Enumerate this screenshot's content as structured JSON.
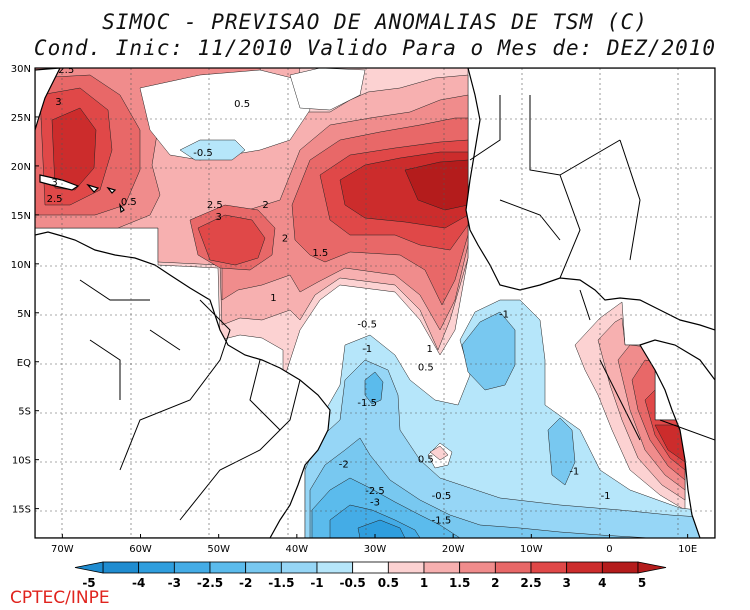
{
  "header": {
    "title_line1": "SIMOC - PREVISAO DE ANOMALIAS DE TSM (C)",
    "title_line2": "Cond. Inic: 11/2010   Valido Para o Mes de: DEZ/2010"
  },
  "map": {
    "lat_labels": [
      "30N",
      "25N",
      "20N",
      "15N",
      "10N",
      "5N",
      "EQ",
      "5S",
      "10S",
      "15S"
    ],
    "lon_labels": [
      "70W",
      "60W",
      "50W",
      "40W",
      "30W",
      "20W",
      "10W",
      "0",
      "10E"
    ],
    "contour_labels": [
      {
        "text": "2.5",
        "lon": -69.5,
        "lat": 29.5
      },
      {
        "text": "3",
        "lon": -70.5,
        "lat": 26.2
      },
      {
        "text": "3",
        "lon": -71.0,
        "lat": 18.0
      },
      {
        "text": "2.5",
        "lon": -71.0,
        "lat": 16.3
      },
      {
        "text": "0.5",
        "lon": -47.0,
        "lat": 26.0
      },
      {
        "text": "-0.5",
        "lon": -52.0,
        "lat": 21.0
      },
      {
        "text": "0.5",
        "lon": -61.5,
        "lat": 16.0
      },
      {
        "text": "2.5",
        "lon": -50.5,
        "lat": 15.7
      },
      {
        "text": "3",
        "lon": -50.0,
        "lat": 14.5
      },
      {
        "text": "2",
        "lon": -44.0,
        "lat": 15.7
      },
      {
        "text": "2",
        "lon": -41.5,
        "lat": 12.3
      },
      {
        "text": "1.5",
        "lon": -37.0,
        "lat": 10.8
      },
      {
        "text": "1",
        "lon": -43.0,
        "lat": 6.2
      },
      {
        "text": "-0.5",
        "lon": -31.0,
        "lat": 3.5
      },
      {
        "text": "-1",
        "lon": -31.0,
        "lat": 1.0
      },
      {
        "text": "1",
        "lon": -23.0,
        "lat": 1.0
      },
      {
        "text": "0.5",
        "lon": -23.5,
        "lat": -0.9
      },
      {
        "text": "-1.5",
        "lon": -31.0,
        "lat": -4.5
      },
      {
        "text": "-1",
        "lon": -13.5,
        "lat": 4.5
      },
      {
        "text": "0.5",
        "lon": -23.5,
        "lat": -10.3
      },
      {
        "text": "-2",
        "lon": -34.0,
        "lat": -10.8
      },
      {
        "text": "-2.5",
        "lon": -30.0,
        "lat": -13.5
      },
      {
        "text": "-3",
        "lon": -30.0,
        "lat": -14.7
      },
      {
        "text": "-0.5",
        "lon": -21.5,
        "lat": -14.0
      },
      {
        "text": "-1.5",
        "lon": -21.5,
        "lat": -16.5
      },
      {
        "text": "-1",
        "lon": -4.5,
        "lat": -11.5
      },
      {
        "text": "-1",
        "lon": -0.5,
        "lat": -14.0
      }
    ]
  },
  "colorbar": {
    "labels": [
      "-5",
      "-4",
      "-3",
      "-2.5",
      "-2",
      "-1.5",
      "-1",
      "-0.5",
      "0.5",
      "1",
      "1.5",
      "2",
      "2.5",
      "3",
      "4",
      "5"
    ],
    "colors": [
      "#1f8cd0",
      "#2f9ede",
      "#44ace6",
      "#5bbbec",
      "#78c8f0",
      "#96d6f6",
      "#b6e6fa",
      "#ffffff",
      "#fcd2d2",
      "#f7b0b0",
      "#f08c8c",
      "#e86868",
      "#e04848",
      "#cc2c2c",
      "#b41c1c"
    ]
  },
  "footer": {
    "credit": "CPTEC/INPE"
  },
  "colors": {
    "red1": "#fcd2d2",
    "red2": "#f7b0b0",
    "red3": "#f08c8c",
    "red4": "#e86868",
    "red5": "#e04848",
    "red6": "#cc2c2c",
    "red7": "#b41c1c",
    "blue1": "#b6e6fa",
    "blue2": "#96d6f6",
    "blue3": "#78c8f0",
    "blue4": "#5bbbec",
    "blue5": "#44ace6",
    "blue6": "#2f9ede",
    "footer": "#e0241e"
  }
}
